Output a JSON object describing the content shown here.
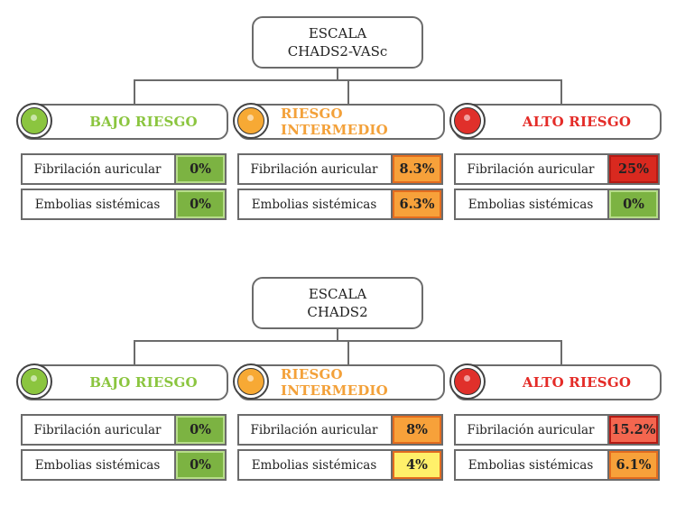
{
  "colors": {
    "green": "#8bc53f",
    "green_text": "#8bc53f",
    "orange": "#f7a934",
    "orange_text": "#f3a13a",
    "red": "#e0302b",
    "red_text": "#e42b27",
    "value_green_bg": "#7cb342",
    "value_orange_bg": "#f7a13a",
    "value_red_bg": "#d9291f",
    "value_salmon_bg": "#f4664f",
    "value_yellow_bg": "#fff06a",
    "value_green_border": "#b7dd8a",
    "value_orange_border": "#e36c1f",
    "value_red_border": "#b51a14"
  },
  "scales": [
    {
      "title_line1": "ESCALA",
      "title_line2": "CHADS2-VASc",
      "categories": [
        {
          "name": "BAJO RIESGO",
          "status_color": "green",
          "rows": [
            {
              "label": "Fibrilación auricular",
              "value": "0%",
              "value_color": "green"
            },
            {
              "label": "Embolias sistémicas",
              "value": "0%",
              "value_color": "green"
            }
          ]
        },
        {
          "name": "RIESGO INTERMEDIO",
          "status_color": "orange",
          "rows": [
            {
              "label": "Fibrilación auricular",
              "value": "8.3%",
              "value_color": "orange"
            },
            {
              "label": "Embolias sistémicas",
              "value": "6.3%",
              "value_color": "orange"
            }
          ]
        },
        {
          "name": "ALTO RIESGO",
          "status_color": "red",
          "rows": [
            {
              "label": "Fibrilación auricular",
              "value": "25%",
              "value_color": "red"
            },
            {
              "label": "Embolias sistémicas",
              "value": "0%",
              "value_color": "green"
            }
          ]
        }
      ]
    },
    {
      "title_line1": "ESCALA",
      "title_line2": "CHADS2",
      "categories": [
        {
          "name": "BAJO RIESGO",
          "status_color": "green",
          "rows": [
            {
              "label": "Fibrilación auricular",
              "value": "0%",
              "value_color": "green"
            },
            {
              "label": "Embolias sistémicas",
              "value": "0%",
              "value_color": "green"
            }
          ]
        },
        {
          "name": "RIESGO INTERMEDIO",
          "status_color": "orange",
          "rows": [
            {
              "label": "Fibrilación auricular",
              "value": "8%",
              "value_color": "orange"
            },
            {
              "label": "Embolias sistémicas",
              "value": "4%",
              "value_color": "yellow"
            }
          ]
        },
        {
          "name": "ALTO RIESGO",
          "status_color": "red",
          "rows": [
            {
              "label": "Fibrilación auricular",
              "value": "15.2%",
              "value_color": "salmon"
            },
            {
              "label": "Embolias sistémicas",
              "value": "6.1%",
              "value_color": "orange"
            }
          ]
        }
      ]
    }
  ]
}
